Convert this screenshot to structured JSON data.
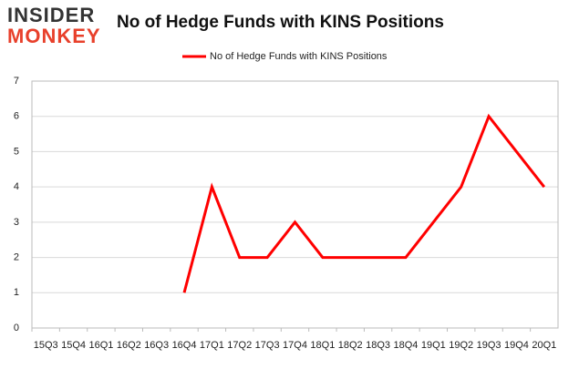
{
  "logo": {
    "top": "INSIDER",
    "bottom": "MONKEY"
  },
  "chart_data": {
    "type": "line",
    "title": "No of Hedge Funds with KINS Positions",
    "categories": [
      "15Q3",
      "15Q4",
      "16Q1",
      "16Q2",
      "16Q3",
      "16Q4",
      "17Q1",
      "17Q2",
      "17Q3",
      "17Q4",
      "18Q1",
      "18Q2",
      "18Q3",
      "18Q4",
      "19Q1",
      "19Q2",
      "19Q3",
      "19Q4",
      "20Q1"
    ],
    "series": [
      {
        "name": "No of Hedge Funds with KINS Positions",
        "color": "#ff0000",
        "values": [
          null,
          null,
          null,
          null,
          null,
          1,
          4,
          2,
          2,
          3,
          2,
          2,
          2,
          2,
          3,
          4,
          6,
          5,
          4
        ]
      }
    ],
    "ylim": [
      0,
      7
    ],
    "yticks": [
      0,
      1,
      2,
      3,
      4,
      5,
      6,
      7
    ],
    "grid": true,
    "legend": "top"
  }
}
